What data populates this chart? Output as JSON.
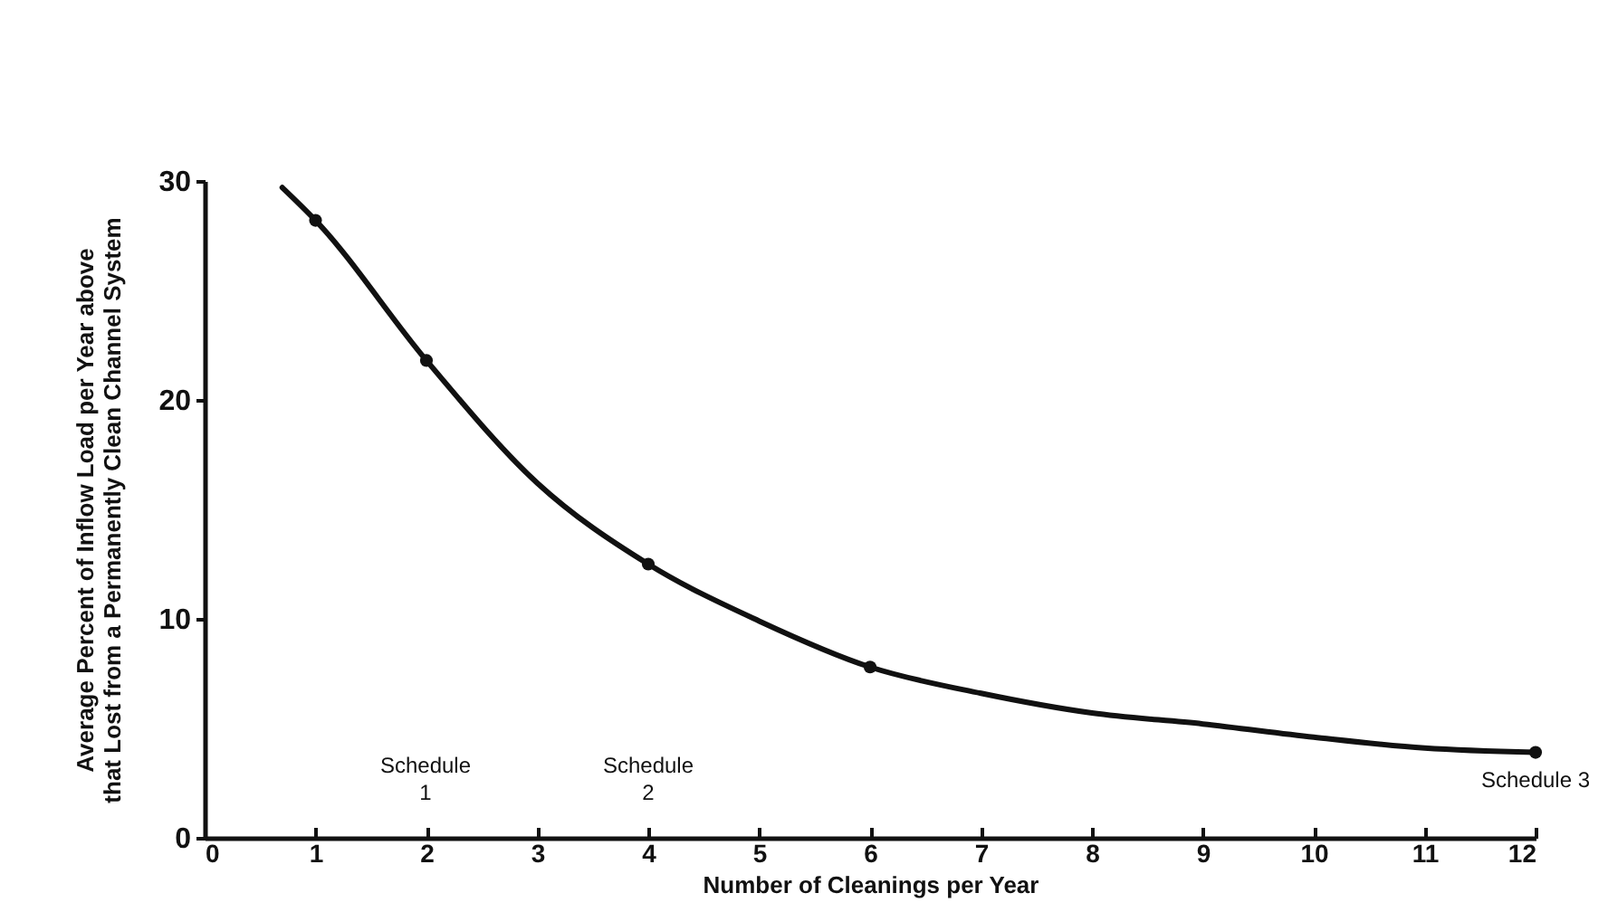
{
  "chart_data": {
    "type": "line",
    "xlabel": "Number of Cleanings per Year",
    "ylabel": "Average Percent of Inflow Load per Year above\nthat Lost from a Permanently Clean Channel System",
    "series": [
      {
        "color": "#111111",
        "x": [
          0.7,
          1,
          2,
          3,
          4,
          5,
          6,
          7,
          8,
          9,
          10,
          11,
          12
        ],
        "values": [
          29.7,
          28.2,
          21.8,
          16.2,
          12.5,
          9.9,
          7.8,
          6.6,
          5.7,
          5.2,
          4.6,
          4.1,
          3.9
        ]
      },
      {
        "type": "scatter",
        "color": "#111111",
        "marker": "circle",
        "x": [
          1,
          2,
          4,
          6,
          12
        ],
        "values": [
          28.2,
          21.8,
          12.5,
          7.8,
          3.9
        ]
      }
    ],
    "annotations": [
      "Schedule\n1",
      "Schedule\n2",
      "Schedule 3"
    ],
    "xlim": [
      0,
      12
    ],
    "xticks": [
      0,
      1,
      2,
      3,
      4,
      5,
      6,
      7,
      8,
      9,
      10,
      11,
      12
    ],
    "ylim": [
      0,
      30
    ],
    "yticks": [
      0,
      10,
      20,
      30
    ],
    "grid": false
  }
}
